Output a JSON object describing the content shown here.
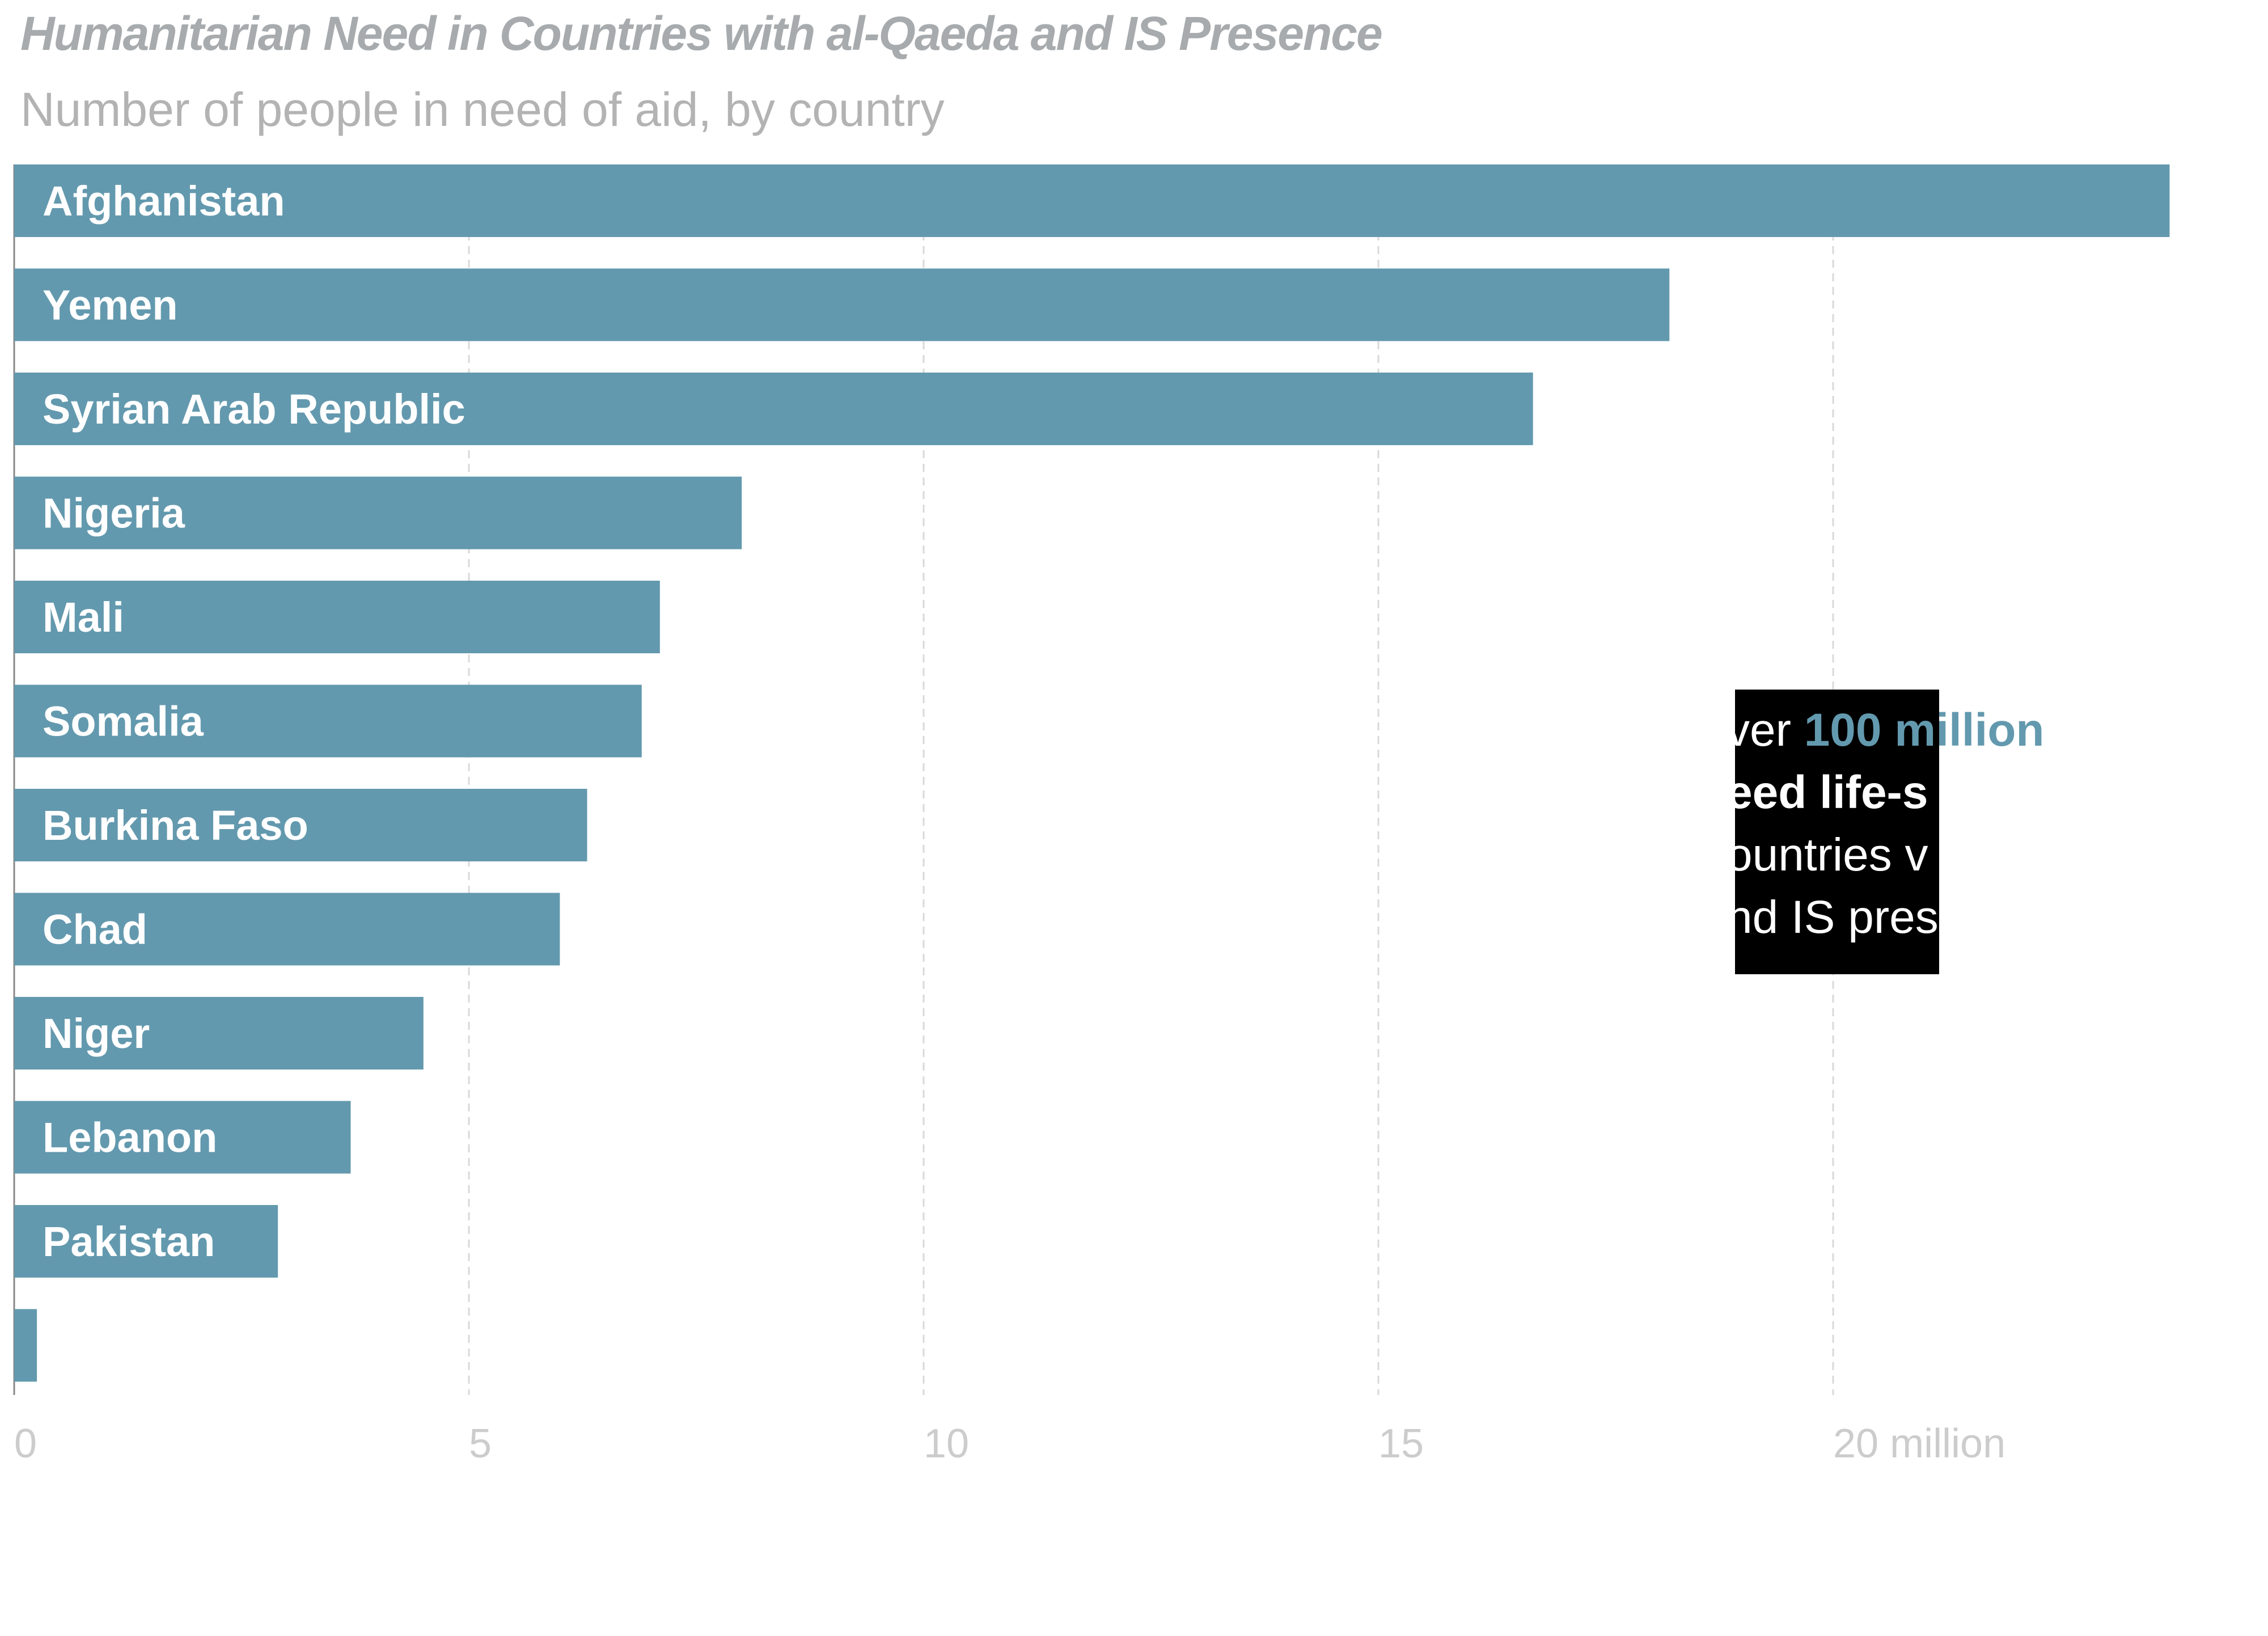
{
  "chart_data": {
    "type": "bar",
    "orientation": "horizontal",
    "title": "Humanitarian Need in Countries with al-Qaeda and IS Presence",
    "subtitle": "Number of people in need of aid, by country",
    "categories": [
      "Afghanistan",
      "Yemen",
      "Syrian Arab Republic",
      "Nigeria",
      "Mali",
      "Somalia",
      "Burkina Faso",
      "Chad",
      "Niger",
      "Lebanon",
      "Pakistan",
      ""
    ],
    "values": [
      23.7,
      18.2,
      16.7,
      8.0,
      7.1,
      6.9,
      6.3,
      6.0,
      4.5,
      3.7,
      2.9,
      0.25
    ],
    "xlim": [
      0,
      25
    ],
    "ticks": [
      0,
      5,
      10,
      15,
      20
    ],
    "tick_labels": [
      "0",
      "5",
      "10",
      "15",
      "20 million"
    ],
    "grid": true,
    "bar_color": "#6399ae",
    "annotation": {
      "lines": [
        [
          {
            "text": "ver ",
            "style": "normal"
          },
          {
            "text": "100 million",
            "style": "accent"
          }
        ],
        [
          {
            "text": "eed life-s",
            "style": "bold"
          }
        ],
        [
          {
            "text": "ountries v",
            "style": "normal"
          }
        ],
        [
          {
            "text": "nd IS pres",
            "style": "normal"
          }
        ]
      ],
      "background": "#000000",
      "accent_color": "#6399ae"
    }
  }
}
